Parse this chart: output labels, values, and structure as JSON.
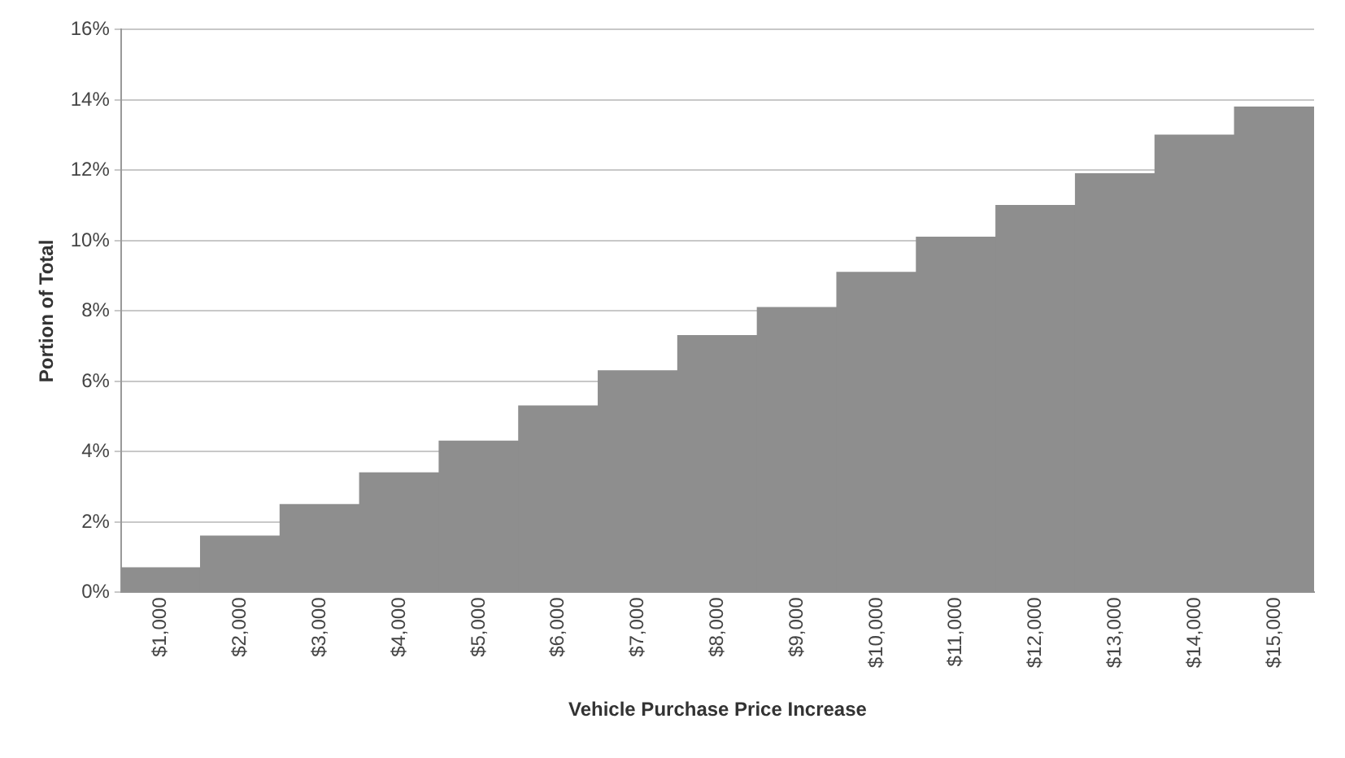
{
  "chart_data": {
    "type": "bar",
    "xlabel": "Vehicle Purchase Price Increase",
    "ylabel": "Portion of Total",
    "categories": [
      "$1,000",
      "$2,000",
      "$3,000",
      "$4,000",
      "$5,000",
      "$6,000",
      "$7,000",
      "$8,000",
      "$9,000",
      "$10,000",
      "$11,000",
      "$12,000",
      "$13,000",
      "$14,000",
      "$15,000"
    ],
    "values": [
      0.7,
      1.6,
      2.5,
      3.4,
      4.3,
      5.3,
      6.3,
      7.3,
      8.1,
      9.1,
      10.1,
      11.0,
      11.9,
      13.0,
      13.8
    ],
    "color": "#8e8e8e",
    "ylim": [
      0,
      16
    ],
    "yticks": [
      {
        "value": 0,
        "label": "0%"
      },
      {
        "value": 2,
        "label": "2%"
      },
      {
        "value": 4,
        "label": "4%"
      },
      {
        "value": 6,
        "label": "6%"
      },
      {
        "value": 8,
        "label": "8%"
      },
      {
        "value": 10,
        "label": "10%"
      },
      {
        "value": 12,
        "label": "12%"
      },
      {
        "value": 14,
        "label": "14%"
      },
      {
        "value": 16,
        "label": "16%"
      }
    ],
    "grid": "y",
    "legend": false
  }
}
